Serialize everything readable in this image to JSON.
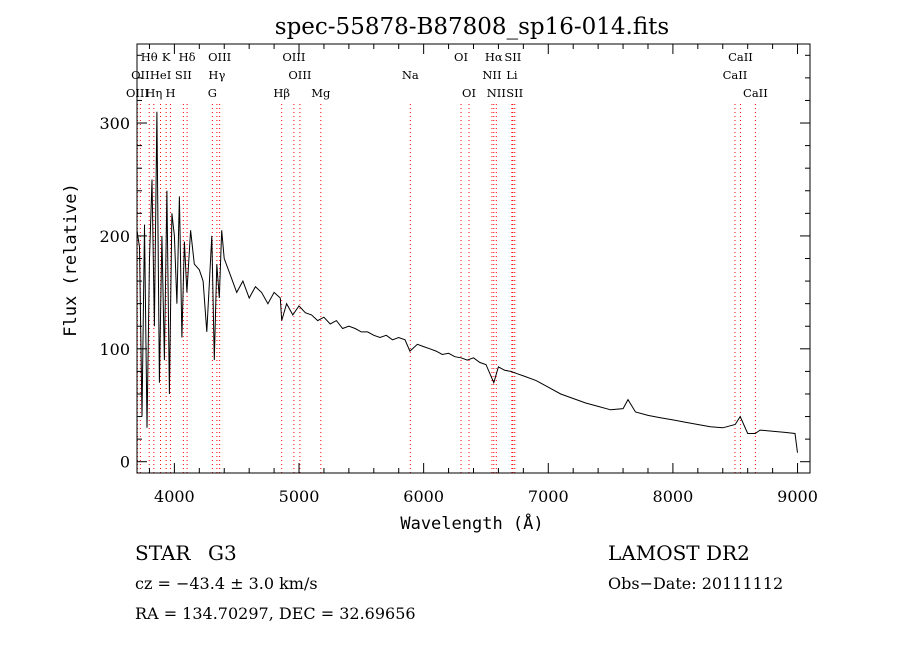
{
  "chart_data": {
    "type": "line",
    "title": "spec-55878-B87808_sp16-014.fits",
    "xlabel": "Wavelength (Å)",
    "ylabel": "Flux (relative)",
    "xlim": [
      3700,
      9100
    ],
    "ylim": [
      -10,
      370
    ],
    "xticks": [
      4000,
      5000,
      6000,
      7000,
      8000,
      9000
    ],
    "yticks": [
      0,
      100,
      200,
      300
    ],
    "grid": false,
    "line_color": "#000000",
    "marker_color": "#ff0000",
    "series": [
      {
        "name": "flux",
        "x": [
          3700,
          3720,
          3740,
          3760,
          3780,
          3800,
          3820,
          3840,
          3860,
          3880,
          3900,
          3920,
          3940,
          3960,
          3980,
          4000,
          4020,
          4040,
          4060,
          4080,
          4100,
          4130,
          4160,
          4200,
          4230,
          4260,
          4300,
          4320,
          4340,
          4360,
          4380,
          4400,
          4450,
          4500,
          4550,
          4600,
          4650,
          4700,
          4750,
          4800,
          4850,
          4861,
          4900,
          4950,
          5000,
          5050,
          5100,
          5150,
          5200,
          5250,
          5300,
          5350,
          5400,
          5450,
          5500,
          5550,
          5600,
          5650,
          5700,
          5750,
          5800,
          5850,
          5890,
          5950,
          6000,
          6050,
          6100,
          6150,
          6200,
          6250,
          6300,
          6350,
          6400,
          6450,
          6500,
          6563,
          6600,
          6650,
          6700,
          6750,
          6800,
          6900,
          7000,
          7100,
          7200,
          7300,
          7400,
          7500,
          7600,
          7640,
          7700,
          7800,
          7900,
          8000,
          8100,
          8200,
          8300,
          8400,
          8500,
          8540,
          8600,
          8660,
          8700,
          8800,
          8900,
          8980,
          9000
        ],
        "values": [
          205,
          190,
          40,
          210,
          30,
          180,
          250,
          120,
          310,
          70,
          200,
          90,
          240,
          60,
          220,
          200,
          140,
          235,
          110,
          195,
          150,
          205,
          175,
          170,
          160,
          115,
          200,
          90,
          175,
          145,
          205,
          180,
          165,
          150,
          160,
          145,
          155,
          150,
          140,
          150,
          145,
          125,
          140,
          130,
          138,
          132,
          130,
          125,
          128,
          122,
          125,
          118,
          120,
          118,
          115,
          115,
          112,
          110,
          112,
          108,
          110,
          108,
          98,
          104,
          102,
          100,
          98,
          95,
          96,
          93,
          92,
          90,
          92,
          88,
          86,
          70,
          84,
          81,
          80,
          78,
          76,
          72,
          66,
          60,
          56,
          52,
          49,
          46,
          47,
          55,
          44,
          41,
          39,
          37,
          35,
          33,
          31,
          30,
          33,
          40,
          25,
          25,
          28,
          27,
          26,
          25,
          8
        ]
      }
    ],
    "lines": [
      {
        "label": "Hθ",
        "x": 3798,
        "row": 0
      },
      {
        "label": "OII",
        "x": 3727,
        "row": 1
      },
      {
        "label": "OIII",
        "x": 3704,
        "row": 2
      },
      {
        "label": "K",
        "x": 3934,
        "row": 0
      },
      {
        "label": "HeI",
        "x": 3889,
        "row": 1
      },
      {
        "label": "Hη",
        "x": 3835,
        "row": 2
      },
      {
        "label": "SII",
        "x": 4072,
        "row": 1
      },
      {
        "label": "H",
        "x": 3969,
        "row": 2
      },
      {
        "label": "Hδ",
        "x": 4102,
        "row": 0
      },
      {
        "label": "OIII",
        "x": 4363,
        "row": 0
      },
      {
        "label": "Hγ",
        "x": 4341,
        "row": 1
      },
      {
        "label": "G",
        "x": 4305,
        "row": 2
      },
      {
        "label": "OIII",
        "x": 4959,
        "row": 0
      },
      {
        "label": "OIII",
        "x": 5007,
        "row": 1
      },
      {
        "label": "Hβ",
        "x": 4861,
        "row": 2
      },
      {
        "label": "Mg",
        "x": 5175,
        "row": 2
      },
      {
        "label": "Na",
        "x": 5893,
        "row": 1
      },
      {
        "label": "OI",
        "x": 6300,
        "row": 0
      },
      {
        "label": "OI",
        "x": 6364,
        "row": 2
      },
      {
        "label": "Hα",
        "x": 6563,
        "row": 0
      },
      {
        "label": "SII",
        "x": 6716,
        "row": 0
      },
      {
        "label": "NII",
        "x": 6548,
        "row": 1
      },
      {
        "label": "Li",
        "x": 6708,
        "row": 1
      },
      {
        "label": "NII",
        "x": 6583,
        "row": 2
      },
      {
        "label": "SII",
        "x": 6731,
        "row": 2
      },
      {
        "label": "CaII",
        "x": 8542,
        "row": 0
      },
      {
        "label": "CaII",
        "x": 8498,
        "row": 1
      },
      {
        "label": "CaII",
        "x": 8662,
        "row": 2
      }
    ]
  },
  "info": {
    "object_class": "STAR",
    "subclass": "G3",
    "survey": "LAMOST DR2",
    "cz": "cz = −43.4 ± 3.0 km/s",
    "obs_date": "Obs−Date: 20111112",
    "coords": "RA = 134.70297, DEC =  32.69656"
  }
}
